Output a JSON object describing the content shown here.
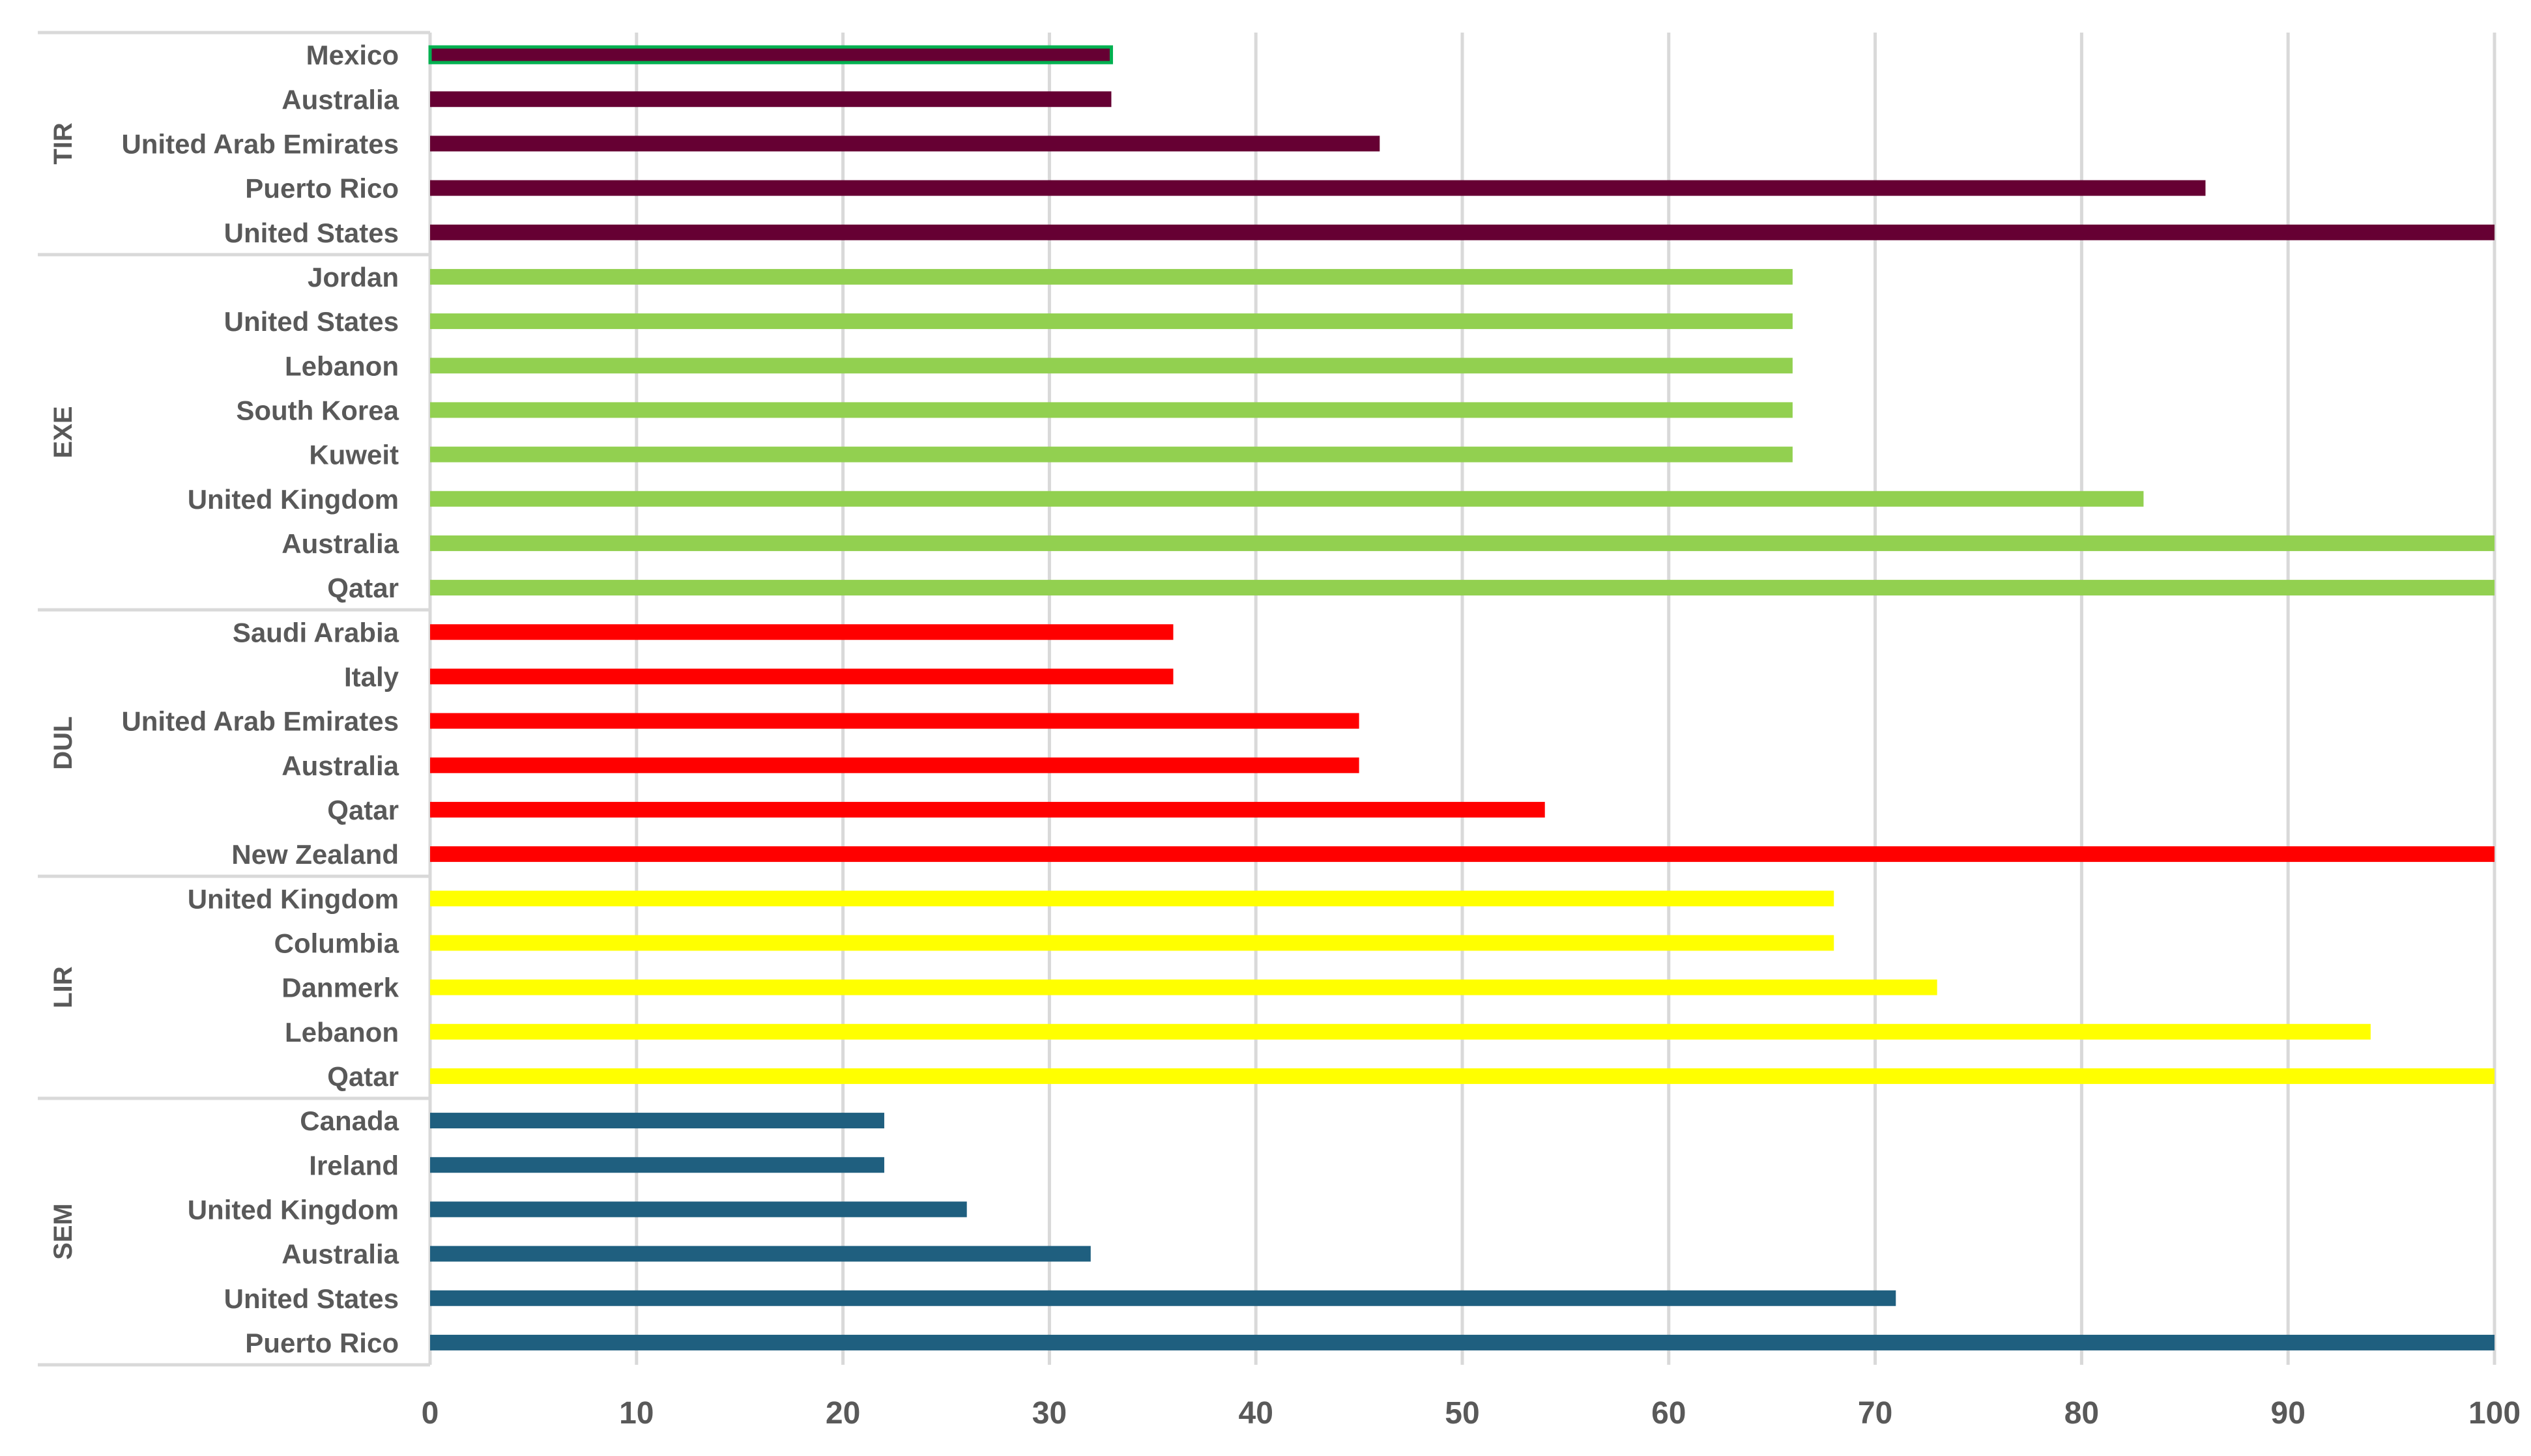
{
  "chart_data": {
    "type": "bar",
    "orientation": "horizontal",
    "title": "",
    "xlabel": "",
    "ylabel": "",
    "xlim": [
      0,
      100
    ],
    "xticks": [
      0,
      10,
      20,
      30,
      40,
      50,
      60,
      70,
      80,
      90,
      100
    ],
    "grid": true,
    "legend": "none",
    "groups": [
      {
        "name": "TIR",
        "color": "#660033",
        "items": [
          {
            "label": "Mexico",
            "value": 33,
            "outline": "#00b050"
          },
          {
            "label": "Australia",
            "value": 33
          },
          {
            "label": "United Arab Emirates",
            "value": 46
          },
          {
            "label": "Puerto Rico",
            "value": 86
          },
          {
            "label": "United States",
            "value": 100
          }
        ]
      },
      {
        "name": "EXE",
        "color": "#92d050",
        "items": [
          {
            "label": "Jordan",
            "value": 66
          },
          {
            "label": "United States",
            "value": 66
          },
          {
            "label": "Lebanon",
            "value": 66
          },
          {
            "label": "South Korea",
            "value": 66
          },
          {
            "label": "Kuweit",
            "value": 66
          },
          {
            "label": "United Kingdom",
            "value": 83
          },
          {
            "label": "Australia",
            "value": 100
          },
          {
            "label": "Qatar",
            "value": 100
          }
        ]
      },
      {
        "name": "DUL",
        "color": "#ff0000",
        "items": [
          {
            "label": "Saudi Arabia",
            "value": 36
          },
          {
            "label": "Italy",
            "value": 36
          },
          {
            "label": "United Arab Emirates",
            "value": 45
          },
          {
            "label": "Australia",
            "value": 45
          },
          {
            "label": "Qatar",
            "value": 54
          },
          {
            "label": "New Zealand",
            "value": 100
          }
        ]
      },
      {
        "name": "LIR",
        "color": "#ffff00",
        "items": [
          {
            "label": "United Kingdom",
            "value": 68
          },
          {
            "label": "Columbia",
            "value": 68
          },
          {
            "label": "Danmerk",
            "value": 73
          },
          {
            "label": "Lebanon",
            "value": 94
          },
          {
            "label": "Qatar",
            "value": 100
          }
        ]
      },
      {
        "name": "SEM",
        "color": "#1f5f7f",
        "items": [
          {
            "label": "Canada",
            "value": 22
          },
          {
            "label": "Ireland",
            "value": 22
          },
          {
            "label": "United Kingdom",
            "value": 26
          },
          {
            "label": "Australia",
            "value": 32
          },
          {
            "label": "United States",
            "value": 71
          },
          {
            "label": "Puerto Rico",
            "value": 100
          }
        ]
      }
    ]
  }
}
